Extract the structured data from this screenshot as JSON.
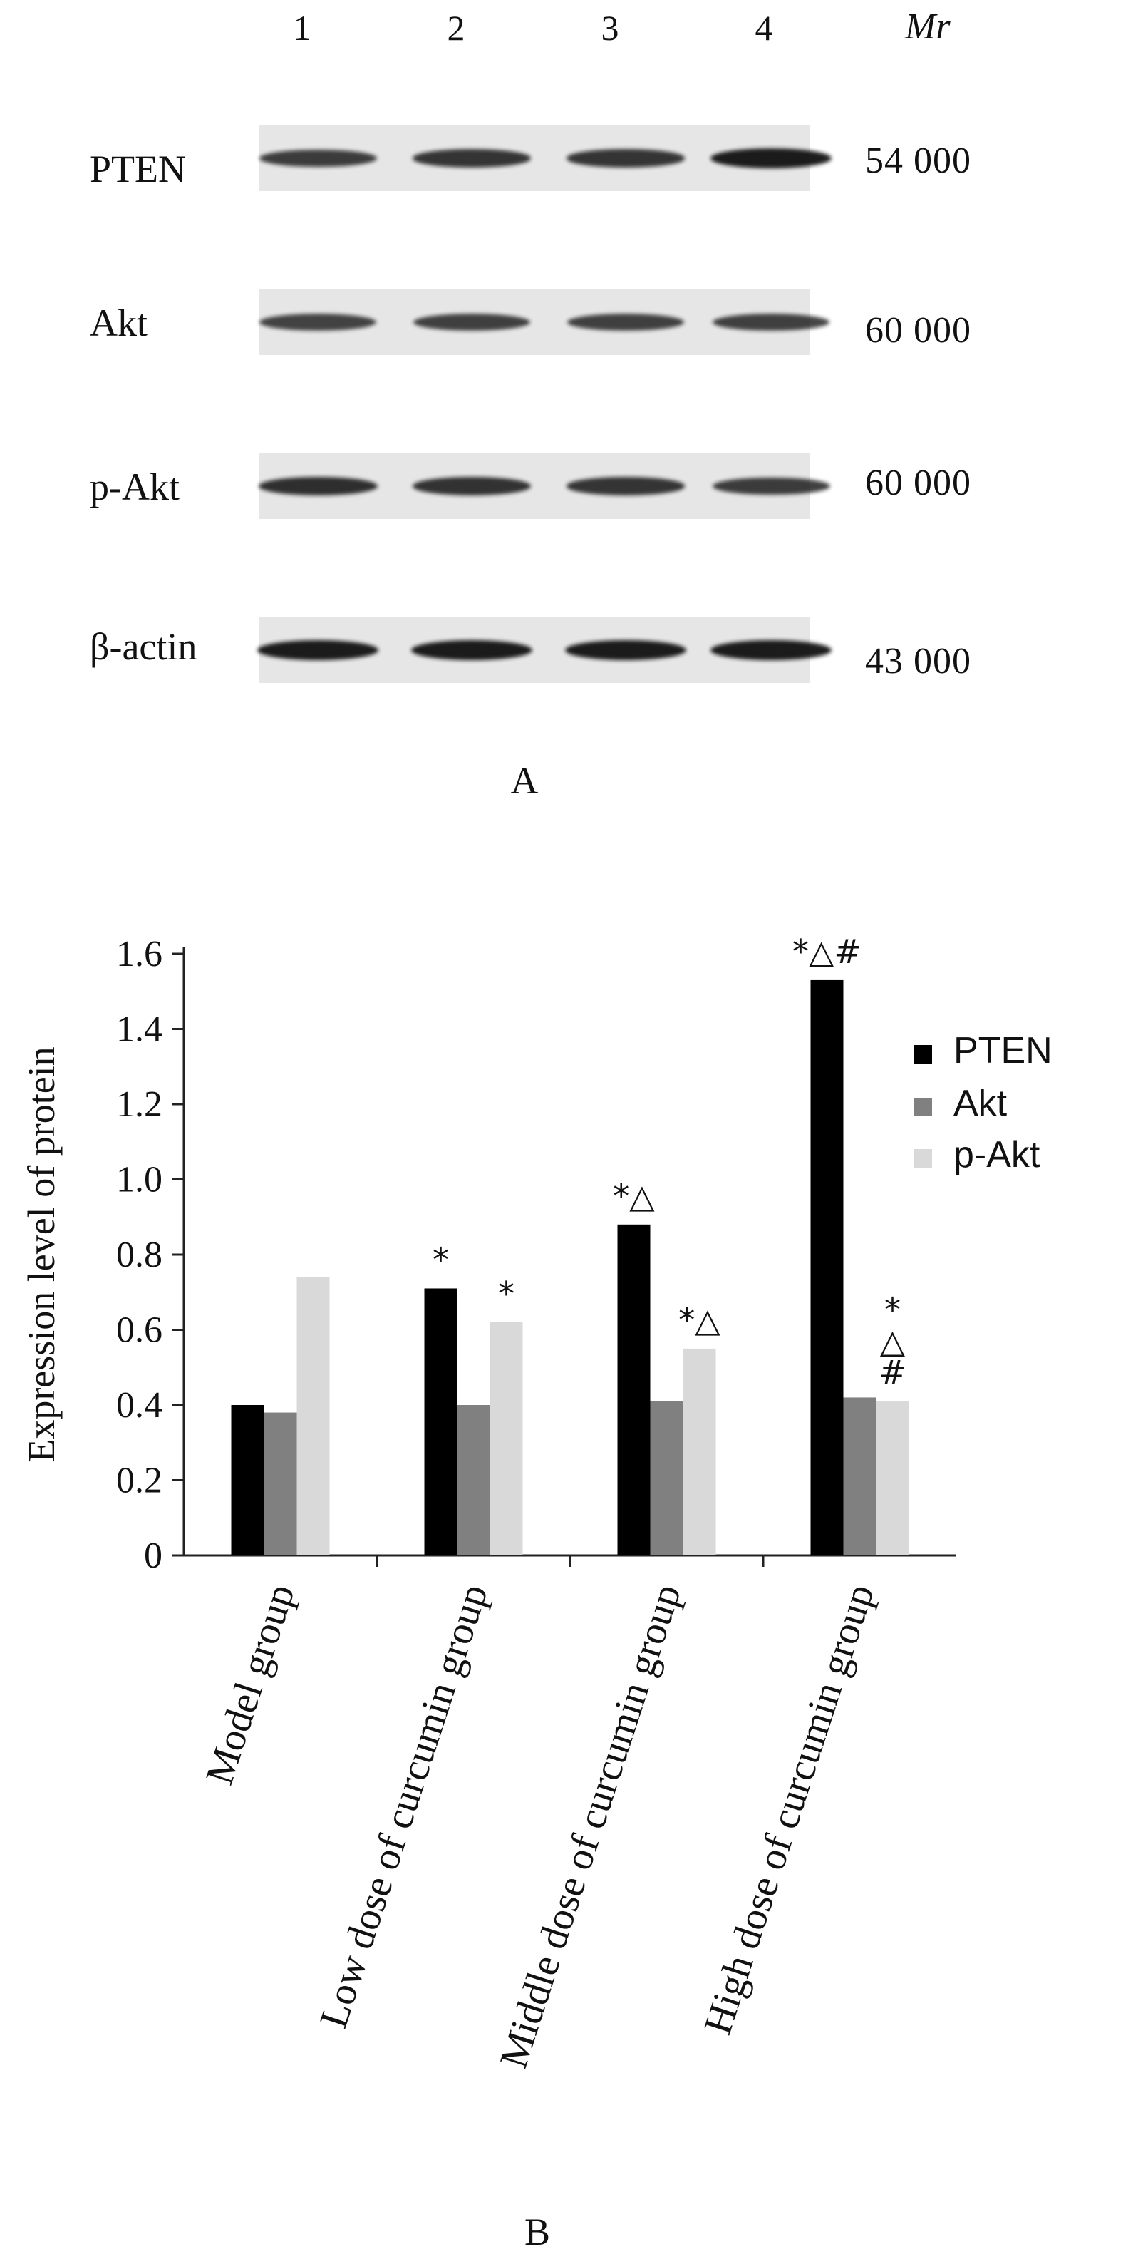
{
  "panel_a": {
    "lanes": [
      "1",
      "2",
      "3",
      "4"
    ],
    "mr_header": "Mr",
    "rows": [
      {
        "protein": "PTEN",
        "mw": "54 000",
        "band_intensity": [
          0.75,
          0.8,
          0.8,
          1.0
        ]
      },
      {
        "protein": "Akt",
        "mw": "60 000",
        "band_intensity": [
          0.7,
          0.72,
          0.72,
          0.72
        ]
      },
      {
        "protein": "p-Akt",
        "mw": "60 000",
        "band_intensity": [
          0.85,
          0.82,
          0.8,
          0.75
        ]
      },
      {
        "protein": "β-actin",
        "mw": "43 000",
        "band_intensity": [
          1.0,
          1.0,
          1.0,
          1.0
        ]
      }
    ],
    "panel_label": "A"
  },
  "panel_b_label": "B",
  "chart_data": {
    "type": "bar",
    "ylabel": "Expression level of protein",
    "xlabel": "",
    "ylim": [
      0,
      1.6
    ],
    "yticks": [
      "0",
      "0.2",
      "0.4",
      "0.6",
      "0.8",
      "1.0",
      "1.2",
      "1.4",
      "1.6"
    ],
    "categories": [
      "Model group",
      "Low dose of curcumin group",
      "Middle dose of curcumin group",
      "High dose of curcumin group"
    ],
    "series": [
      {
        "name": "PTEN",
        "color": "#000000",
        "values": [
          0.4,
          0.71,
          0.88,
          1.53
        ]
      },
      {
        "name": "Akt",
        "color": "#808080",
        "values": [
          0.38,
          0.4,
          0.41,
          0.42
        ]
      },
      {
        "name": "p-Akt",
        "color": "#d9d9d9",
        "values": [
          0.74,
          0.62,
          0.55,
          0.41
        ]
      }
    ],
    "annotations": [
      {
        "category": 1,
        "series": 0,
        "text": "*"
      },
      {
        "category": 1,
        "series": 2,
        "text": "*"
      },
      {
        "category": 2,
        "series": 0,
        "text": "*△"
      },
      {
        "category": 2,
        "series": 2,
        "text": "*△"
      },
      {
        "category": 3,
        "series": 0,
        "text": "*△#"
      },
      {
        "category": 3,
        "series": 2,
        "text": "*\n△\n#"
      }
    ],
    "legend_position": "right"
  }
}
